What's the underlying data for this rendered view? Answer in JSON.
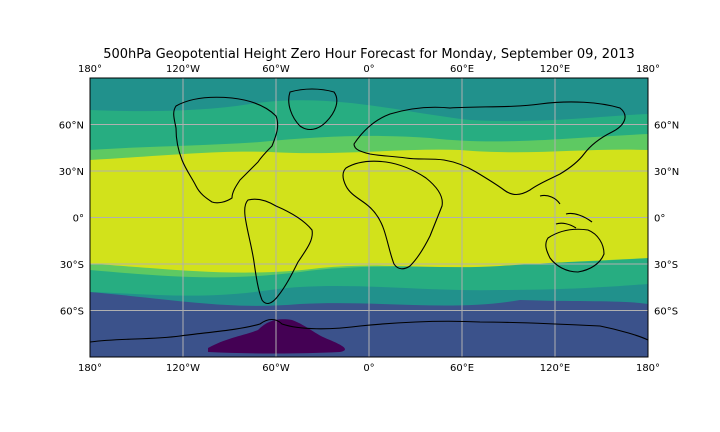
{
  "chart_data": {
    "type": "map",
    "title": "500hPa Geopotential Height Zero Hour Forecast for Monday, September 09, 2013",
    "projection": "PlateCarree",
    "lon_range": [
      -180,
      180
    ],
    "lat_range": [
      -90,
      90
    ],
    "gridlines": true,
    "lon_ticks": [
      {
        "lon": -180,
        "label": "180°"
      },
      {
        "lon": -120,
        "label": "120°W"
      },
      {
        "lon": -60,
        "label": "60°W"
      },
      {
        "lon": 0,
        "label": "0°"
      },
      {
        "lon": 60,
        "label": "60°E"
      },
      {
        "lon": 120,
        "label": "120°E"
      },
      {
        "lon": 180,
        "label": "180°"
      }
    ],
    "lat_ticks": [
      {
        "lat": 60,
        "label": "60°N"
      },
      {
        "lat": 30,
        "label": "30°N"
      },
      {
        "lat": 0,
        "label": "0°"
      },
      {
        "lat": -30,
        "label": "30°S"
      },
      {
        "lat": -60,
        "label": "60°S"
      }
    ],
    "colormap": "viridis",
    "band_colors": [
      "#440154",
      "#3b528b",
      "#21918c",
      "#27ad81",
      "#5ec962",
      "#d2e21b"
    ]
  }
}
